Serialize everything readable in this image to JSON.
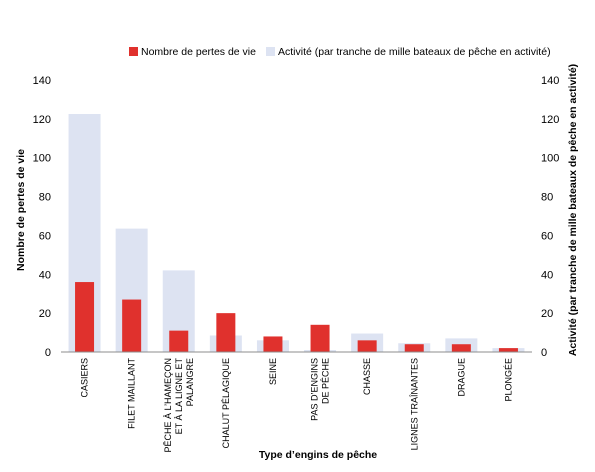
{
  "chart_data": {
    "type": "bar",
    "categories": [
      [
        "CASIERS"
      ],
      [
        "FILET MAILLANT"
      ],
      [
        "PÊCHE À L’HAMEÇON",
        "ET À LA LIGNE ET",
        "PALANGRE"
      ],
      [
        "CHALUT PÉLAGIQUE"
      ],
      [
        "SEINE"
      ],
      [
        "PAS D’ENGINS",
        "DE PÊCHE"
      ],
      [
        "CHASSE"
      ],
      [
        "LIGNES TRAÎNANTES"
      ],
      [
        "DRAGUE"
      ],
      [
        "PLONGÉE"
      ]
    ],
    "series": [
      {
        "name": "Nombre de pertes de vie",
        "color": "#e0312d",
        "axis": "left",
        "values": [
          36,
          27,
          11,
          20,
          8,
          14,
          6,
          4,
          4,
          2
        ]
      },
      {
        "name": "Activité (par tranche de mille bateaux de pêche en activité)",
        "color": "#dde3f2",
        "axis": "right",
        "values": [
          122.5,
          63.5,
          42,
          8.5,
          6,
          1,
          9.5,
          4.5,
          7,
          2
        ]
      }
    ],
    "xlabel": "Type d’engins de pêche",
    "ylabel_left": "Nombre de pertes de vie",
    "ylabel_right": "Activité (par tranche de mille bateaux de pêche en activité)",
    "ylim": [
      0,
      140
    ],
    "yticks": [
      0,
      20,
      40,
      60,
      80,
      100,
      120,
      140
    ],
    "grid": false,
    "legend_position": "top"
  }
}
